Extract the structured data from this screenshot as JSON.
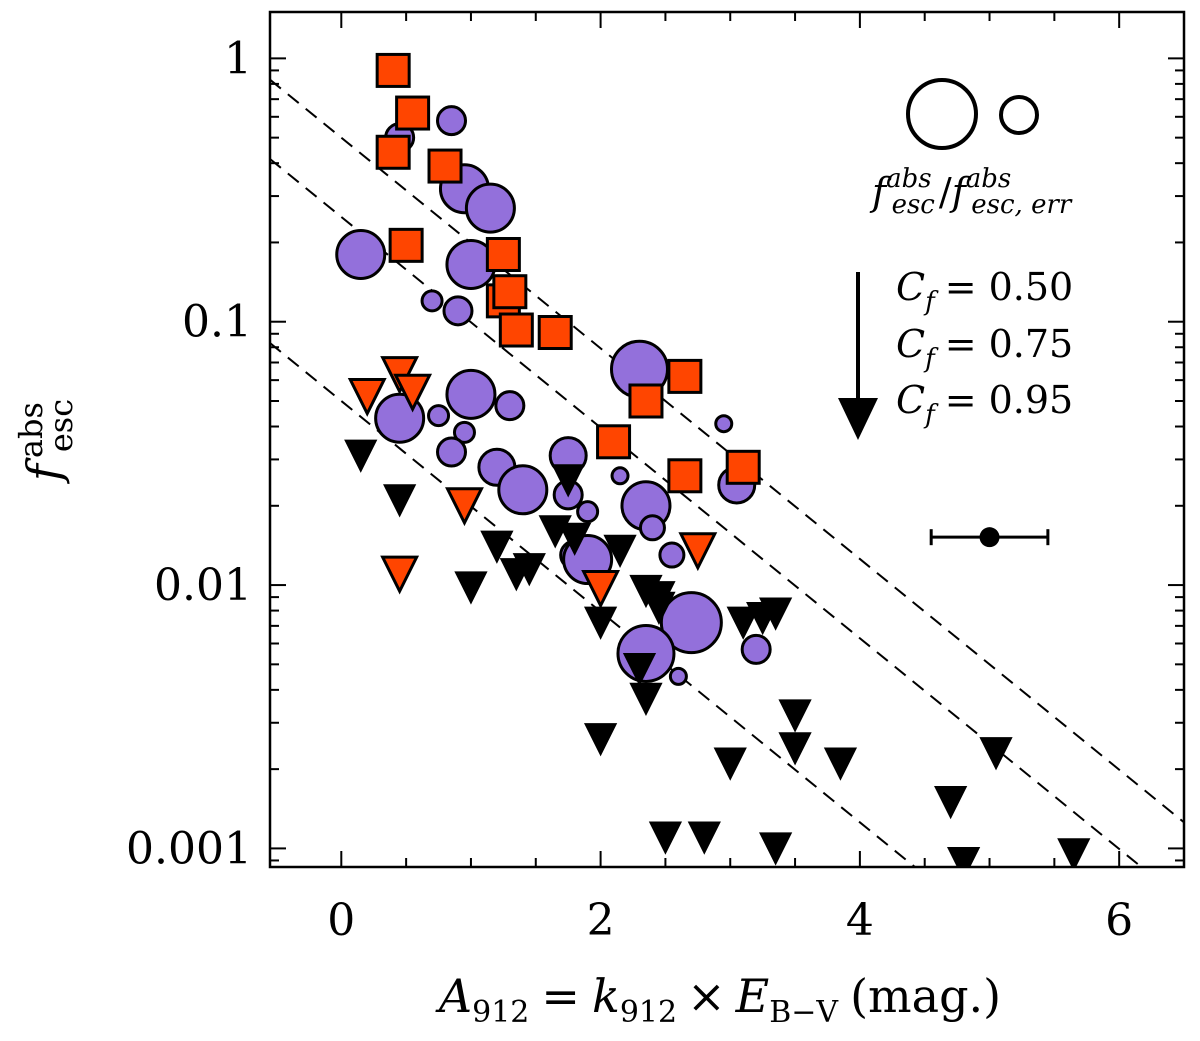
{
  "chart_data": {
    "type": "scatter",
    "title": "",
    "xlabel": "A912 = k912 × E(B−V) (mag.)",
    "xlabel_parts": {
      "A": "A",
      "A_sub": "912",
      "eq": "=",
      "k": "k",
      "k_sub": "912",
      "times": "×",
      "E": "E",
      "E_sub": "B−V",
      "unit": "(mag.)"
    },
    "ylabel_parts": {
      "f": "f",
      "sup": "abs",
      "sub": "esc"
    },
    "xlim": [
      -0.55,
      6.5
    ],
    "ylim": [
      0.00085,
      1.5
    ],
    "yscale": "log",
    "x_ticks": [
      0,
      2,
      4,
      6
    ],
    "x_tick_labels": [
      "0",
      "2",
      "4",
      "6"
    ],
    "y_ticks": [
      1,
      0.1,
      0.01,
      0.001
    ],
    "y_tick_labels": [
      "1",
      "0.1",
      "0.01",
      "0.001"
    ],
    "colors": {
      "circle": "#9370DB",
      "square": "#FF4500",
      "tri_red": "#FF4500",
      "tri_black": "#000000",
      "line": "#000000"
    },
    "series": [
      {
        "name": "detections (circles, size ∝ f_esc/f_esc,err)",
        "marker": "circle",
        "points": [
          [
            0.15,
            0.18,
            24
          ],
          [
            0.45,
            0.5,
            14
          ],
          [
            0.85,
            0.58,
            14
          ],
          [
            0.7,
            0.12,
            10
          ],
          [
            0.9,
            0.11,
            14
          ],
          [
            0.95,
            0.32,
            24
          ],
          [
            1.15,
            0.27,
            24
          ],
          [
            1.0,
            0.165,
            24
          ],
          [
            1.3,
            0.13,
            14
          ],
          [
            0.45,
            0.043,
            24
          ],
          [
            0.75,
            0.044,
            10
          ],
          [
            0.95,
            0.038,
            10
          ],
          [
            1.0,
            0.053,
            24
          ],
          [
            1.3,
            0.048,
            14
          ],
          [
            0.85,
            0.032,
            14
          ],
          [
            1.2,
            0.028,
            18
          ],
          [
            1.4,
            0.023,
            24
          ],
          [
            1.75,
            0.031,
            18
          ],
          [
            1.75,
            0.022,
            14
          ],
          [
            1.9,
            0.019,
            10
          ],
          [
            2.15,
            0.026,
            8
          ],
          [
            1.8,
            0.013,
            14
          ],
          [
            1.9,
            0.0125,
            24
          ],
          [
            2.35,
            0.02,
            24
          ],
          [
            2.4,
            0.0165,
            12
          ],
          [
            2.3,
            0.066,
            28
          ],
          [
            2.55,
            0.013,
            12
          ],
          [
            2.7,
            0.0072,
            30
          ],
          [
            2.35,
            0.0055,
            28
          ],
          [
            2.6,
            0.0045,
            8
          ],
          [
            3.05,
            0.024,
            18
          ],
          [
            2.95,
            0.041,
            8
          ],
          [
            3.2,
            0.0057,
            14
          ]
        ]
      },
      {
        "name": "red squares",
        "marker": "square",
        "points": [
          [
            0.4,
            0.9
          ],
          [
            0.55,
            0.62
          ],
          [
            0.4,
            0.44
          ],
          [
            0.8,
            0.39
          ],
          [
            0.5,
            0.195
          ],
          [
            1.25,
            0.18
          ],
          [
            1.25,
            0.12
          ],
          [
            1.3,
            0.13
          ],
          [
            1.35,
            0.093
          ],
          [
            1.65,
            0.091
          ],
          [
            2.1,
            0.035
          ],
          [
            2.35,
            0.05
          ],
          [
            2.65,
            0.062
          ],
          [
            2.65,
            0.026
          ],
          [
            3.1,
            0.028
          ]
        ]
      },
      {
        "name": "red upper limits",
        "marker": "triangle_down_red",
        "points": [
          [
            0.2,
            0.052
          ],
          [
            0.45,
            0.063
          ],
          [
            0.55,
            0.054
          ],
          [
            0.95,
            0.02
          ],
          [
            0.45,
            0.011
          ],
          [
            2.0,
            0.0097
          ],
          [
            2.75,
            0.0135
          ]
        ]
      },
      {
        "name": "black upper limits",
        "marker": "triangle_down_black",
        "points": [
          [
            0.15,
            0.031
          ],
          [
            0.45,
            0.021
          ],
          [
            1.0,
            0.0098
          ],
          [
            1.2,
            0.014
          ],
          [
            1.35,
            0.011
          ],
          [
            1.45,
            0.0115
          ],
          [
            1.65,
            0.016
          ],
          [
            1.75,
            0.025
          ],
          [
            1.8,
            0.015
          ],
          [
            2.15,
            0.0135
          ],
          [
            2.0,
            0.0072
          ],
          [
            2.35,
            0.0095
          ],
          [
            2.45,
            0.009
          ],
          [
            2.45,
            0.0082
          ],
          [
            2.3,
            0.0048
          ],
          [
            2.35,
            0.0037
          ],
          [
            2.0,
            0.0026
          ],
          [
            3.1,
            0.0072
          ],
          [
            3.25,
            0.0075
          ],
          [
            3.35,
            0.0078
          ],
          [
            3.5,
            0.0032
          ],
          [
            3.5,
            0.0024
          ],
          [
            3.0,
            0.0021
          ],
          [
            3.85,
            0.0021
          ],
          [
            2.5,
            0.0011
          ],
          [
            2.8,
            0.0011
          ],
          [
            3.35,
            0.001
          ],
          [
            4.7,
            0.0015
          ],
          [
            5.05,
            0.0023
          ],
          [
            4.8,
            0.00088
          ],
          [
            5.65,
            0.00095
          ]
        ]
      }
    ],
    "reference_lines": [
      {
        "label": "C_f = 0.50",
        "slope_dex_per_mag": -0.4,
        "y_at_x0": 0.5
      },
      {
        "label": "C_f = 0.75",
        "slope_dex_per_mag": -0.4,
        "y_at_x0": 0.25
      },
      {
        "label": "C_f = 0.95",
        "slope_dex_per_mag": -0.4,
        "y_at_x0": 0.05
      }
    ],
    "legend": {
      "size_label": {
        "f": "f",
        "sup1": "abs",
        "sub1": "esc",
        "slash": "/",
        "f2": "f",
        "sup2": "abs",
        "sub2": "esc, err"
      },
      "cf_labels": [
        {
          "C": "C",
          "sub": "f",
          "eq": "= 0.50"
        },
        {
          "C": "C",
          "sub": "f",
          "eq": "= 0.75"
        },
        {
          "C": "C",
          "sub": "f",
          "eq": "= 0.95"
        }
      ],
      "placement": "top-right"
    },
    "error_bar_example": {
      "x": 5.0,
      "y": 0.0152,
      "xerr_low": 0.45,
      "xerr_high": 0.45
    }
  }
}
